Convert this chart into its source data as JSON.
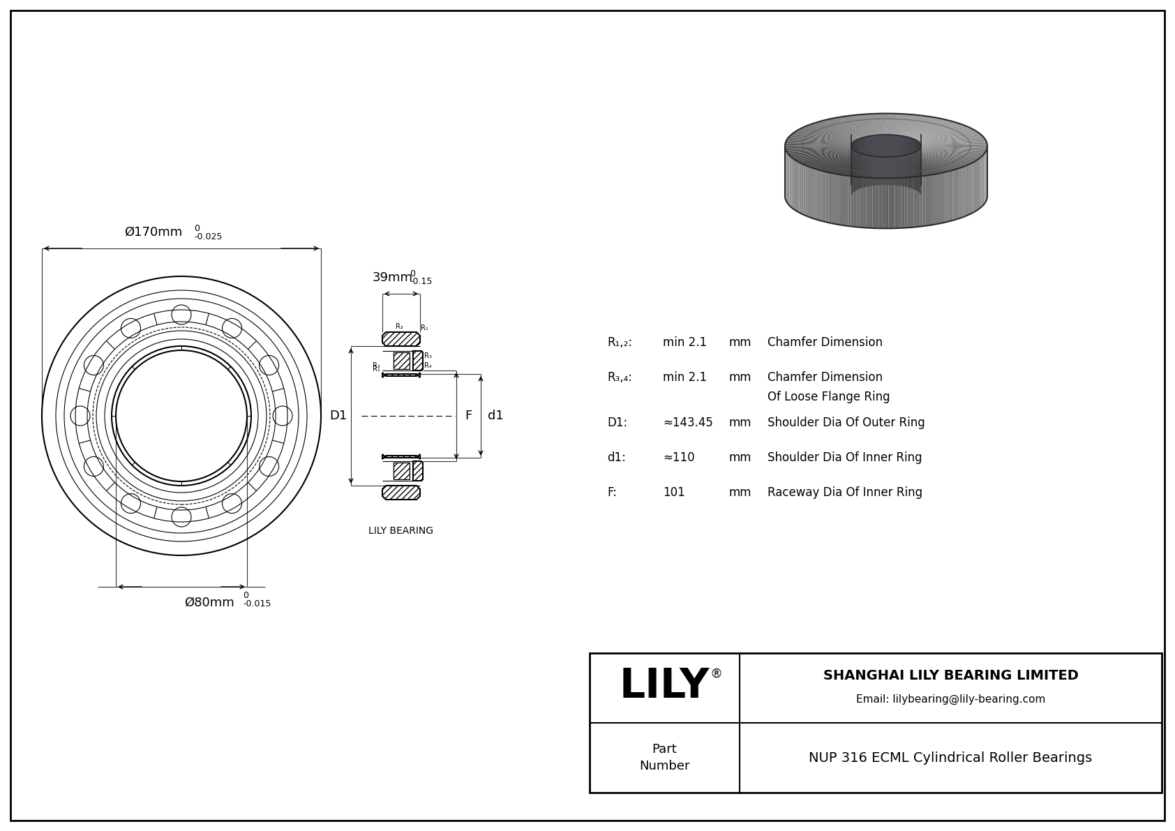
{
  "bg_color": "#ffffff",
  "line_color": "#000000",
  "title_box": {
    "company": "SHANGHAI LILY BEARING LIMITED",
    "email": "Email: lilybearing@lily-bearing.com",
    "part_label": "Part\nNumber",
    "part_number": "NUP 316 ECML Cylindrical Roller Bearings",
    "lily_text": "LILY"
  },
  "dimensions": {
    "outer_dia": "Ø170mm",
    "outer_tol_top": "0",
    "outer_tol_bot": "-0.025",
    "inner_dia": "Ø80mm",
    "inner_tol_top": "0",
    "inner_tol_bot": "-0.015",
    "width": "39mm",
    "width_tol_top": "0",
    "width_tol_bot": "-0.15"
  },
  "specs": {
    "R12_label": "R₁,₂:",
    "R12_value": "min 2.1",
    "R12_unit": "mm",
    "R12_desc": "Chamfer Dimension",
    "R34_label": "R₃,₄:",
    "R34_value": "min 2.1",
    "R34_unit": "mm",
    "R34_desc1": "Chamfer Dimension",
    "R34_desc2": "Of Loose Flange Ring",
    "D1_label": "D1:",
    "D1_value": "≈143.45",
    "D1_unit": "mm",
    "D1_desc": "Shoulder Dia Of Outer Ring",
    "d1_label": "d1:",
    "d1_value": "≈110",
    "d1_unit": "mm",
    "d1_desc": "Shoulder Dia Of Inner Ring",
    "F_label": "F:",
    "F_value": "101",
    "F_unit": "mm",
    "F_desc": "Raceway Dia Of Inner Ring"
  },
  "watermark": "LILY BEARING"
}
